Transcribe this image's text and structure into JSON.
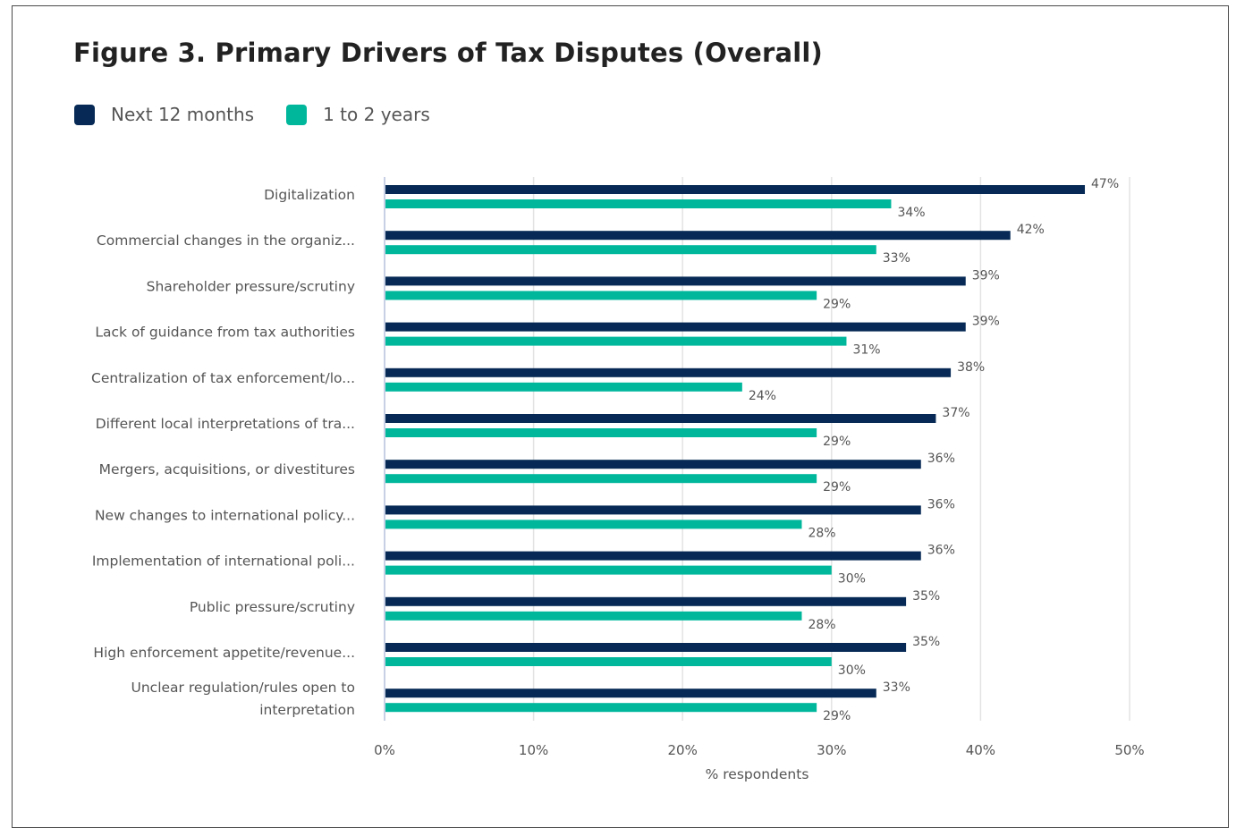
{
  "chart_data": {
    "type": "bar",
    "orientation": "horizontal",
    "title": "Figure 3. Primary Drivers of Tax Disputes (Overall)",
    "xlabel": "% respondents",
    "ylabel": "",
    "xlim": [
      0,
      50
    ],
    "ticks": [
      0,
      10,
      20,
      30,
      40,
      50
    ],
    "tick_labels": [
      "0%",
      "10%",
      "20%",
      "30%",
      "40%",
      "50%"
    ],
    "value_suffix": "%",
    "grid": true,
    "legend_position": "top-left",
    "categories": [
      [
        "Digitalization"
      ],
      [
        "Commercial changes in the organiz..."
      ],
      [
        "Shareholder pressure/scrutiny"
      ],
      [
        "Lack of guidance from tax authorities"
      ],
      [
        "Centralization of tax enforcement/lo..."
      ],
      [
        "Different local interpretations of tra..."
      ],
      [
        "Mergers, acquisitions, or divestitures"
      ],
      [
        "New changes to international policy..."
      ],
      [
        "Implementation of international poli..."
      ],
      [
        "Public pressure/scrutiny"
      ],
      [
        "High enforcement appetite/revenue..."
      ],
      [
        "Unclear regulation/rules open to",
        "interpretation"
      ]
    ],
    "series": [
      {
        "name": "Next 12 months",
        "color": "#062a55",
        "values": [
          47,
          42,
          39,
          39,
          38,
          37,
          36,
          36,
          36,
          35,
          35,
          33
        ]
      },
      {
        "name": "1 to 2 years",
        "color": "#00b79c",
        "values": [
          34,
          33,
          29,
          31,
          24,
          29,
          29,
          28,
          30,
          28,
          30,
          29
        ]
      }
    ]
  }
}
